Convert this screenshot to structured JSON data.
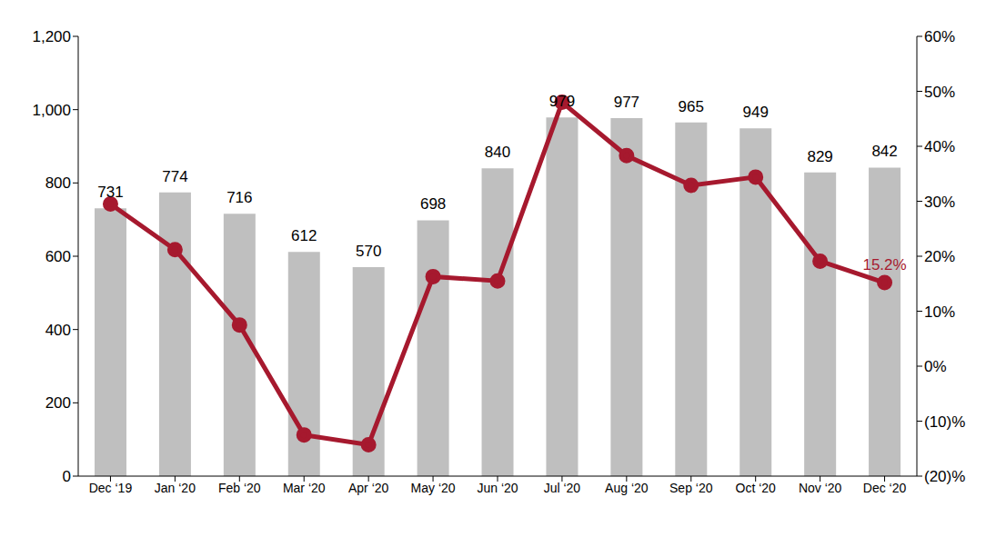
{
  "chart_data": {
    "type": "bar",
    "categories": [
      "Dec ‘19",
      "Jan ‘20",
      "Feb ‘20",
      "Mar ‘20",
      "Apr ‘20",
      "May ‘20",
      "Jun ‘20",
      "Jul ‘20",
      "Aug ‘20",
      "Sep ‘20",
      "Oct ‘20",
      "Nov ‘20",
      "Dec ‘20"
    ],
    "series": [
      {
        "type": "bar",
        "color": "#bfbfbf",
        "data_labels": true,
        "values": [
          731,
          774,
          716,
          612,
          570,
          698,
          840,
          979,
          977,
          965,
          949,
          829,
          842
        ]
      },
      {
        "type": "line",
        "axis": "y2",
        "color": "#a6192e",
        "marker": "circle",
        "values": [
          29.5,
          21.2,
          7.5,
          -12.5,
          -14.3,
          16.3,
          15.5,
          48,
          38.3,
          32.9,
          34.4,
          19.1,
          15.2
        ],
        "value_labels": [
          null,
          null,
          null,
          null,
          null,
          null,
          null,
          null,
          null,
          null,
          null,
          null,
          "15.2%"
        ]
      }
    ],
    "ylim": [
      0,
      1200
    ],
    "yticks": [
      0,
      200,
      400,
      600,
      800,
      {
        "value": 1000,
        "label": "1,000"
      },
      {
        "value": 1200,
        "label": "1,200"
      }
    ],
    "y2lim": [
      -20,
      60
    ],
    "y2ticks": [
      {
        "value": -20,
        "label": "(20)%"
      },
      {
        "value": -10,
        "label": "(10)%"
      },
      {
        "value": 0,
        "label": "0%"
      },
      {
        "value": 10,
        "label": "10%"
      },
      {
        "value": 20,
        "label": "20%"
      },
      {
        "value": 30,
        "label": "30%"
      },
      {
        "value": 40,
        "label": "40%"
      },
      {
        "value": 50,
        "label": "50%"
      },
      {
        "value": 60,
        "label": "60%"
      }
    ],
    "grid": false
  }
}
